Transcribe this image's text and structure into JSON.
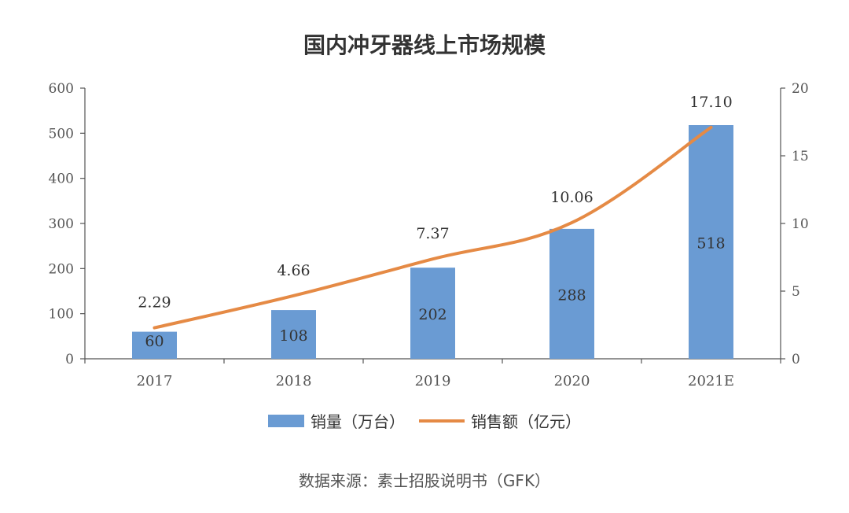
{
  "chart_data": {
    "type": "bar",
    "title": "国内冲牙器线上市场规模",
    "categories": [
      "2017",
      "2018",
      "2019",
      "2020",
      "2021E"
    ],
    "series": [
      {
        "name": "销量（万台）",
        "kind": "bar",
        "axis": "left",
        "color": "#6a9bd3",
        "values": [
          60,
          108,
          202,
          288,
          518
        ],
        "labels": [
          "60",
          "108",
          "202",
          "288",
          "518"
        ]
      },
      {
        "name": "销售额（亿元）",
        "kind": "line",
        "axis": "right",
        "color": "#e58a45",
        "values": [
          2.29,
          4.66,
          7.37,
          10.06,
          17.1
        ],
        "labels": [
          "2.29",
          "4.66",
          "7.37",
          "10.06",
          "17.10"
        ]
      }
    ],
    "left_axis": {
      "min": 0,
      "max": 600,
      "ticks": [
        "0",
        "100",
        "200",
        "300",
        "400",
        "500",
        "600"
      ]
    },
    "right_axis": {
      "min": 0,
      "max": 20,
      "ticks": [
        "0",
        "5",
        "10",
        "15",
        "20"
      ]
    },
    "grid": false,
    "legend_position": "bottom"
  },
  "source_note": "数据来源：素士招股说明书（GFK）"
}
